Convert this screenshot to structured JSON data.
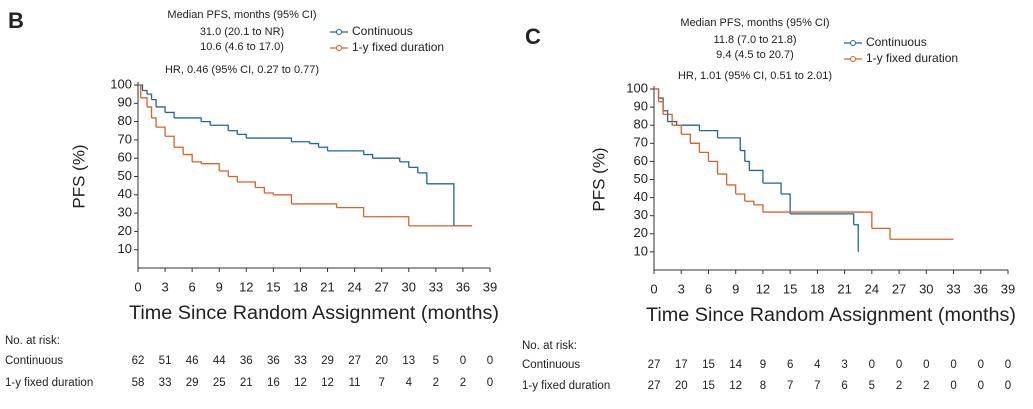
{
  "chart_data": [
    {
      "type": "step",
      "panel": "B",
      "annotations": [
        "Median PFS, months (95% CI)",
        "31.0 (20.1 to NR)",
        "10.6 (4.6 to 17.0)",
        "HR, 0.46 (95% CI, 0.27 to 0.77)"
      ],
      "x_label": "Time Since Random Assignment (months)",
      "y_label": "PFS (%)",
      "xlim": [
        0,
        39
      ],
      "xticks": [
        0,
        3,
        6,
        9,
        12,
        15,
        18,
        21,
        24,
        27,
        30,
        33,
        36,
        39
      ],
      "ylim": [
        0,
        100
      ],
      "yticks": [
        10,
        20,
        30,
        40,
        50,
        60,
        70,
        80,
        90,
        100
      ],
      "series": [
        {
          "name": "Continuous",
          "color": "#21659e",
          "x": [
            0,
            0.5,
            1,
            1.5,
            2,
            3,
            4,
            7,
            8,
            10,
            11,
            12,
            17,
            19,
            20,
            21,
            25,
            26,
            29,
            30,
            31,
            32,
            35,
            37
          ],
          "values": [
            100,
            97,
            95,
            92,
            88,
            85,
            82,
            80,
            78,
            75,
            73,
            71,
            69,
            68,
            66,
            64,
            62,
            60,
            58,
            55,
            52,
            46,
            23,
            23
          ]
        },
        {
          "name": "1-y fixed duration",
          "color": "#d9622b",
          "x": [
            0,
            0.3,
            1,
            1.5,
            2,
            3,
            4,
            5,
            6,
            7,
            9,
            10,
            11,
            13,
            14,
            15,
            17,
            22,
            25,
            30,
            37
          ],
          "values": [
            100,
            93,
            88,
            82,
            77,
            72,
            66,
            62,
            58,
            57,
            53,
            50,
            47,
            44,
            41,
            40,
            35,
            33,
            28,
            23,
            23
          ]
        }
      ],
      "risk_table": {
        "title": "No. at risk:",
        "rows": [
          {
            "name": "Continuous",
            "values": [
              62,
              51,
              46,
              44,
              36,
              36,
              33,
              29,
              27,
              20,
              13,
              5,
              0,
              0
            ]
          },
          {
            "name": "1-y fixed duration",
            "values": [
              58,
              33,
              29,
              25,
              21,
              16,
              12,
              12,
              11,
              7,
              4,
              2,
              2,
              0
            ]
          }
        ]
      }
    },
    {
      "type": "step",
      "panel": "C",
      "annotations": [
        "Median PFS, months (95% CI)",
        "11.8 (7.0 to 21.8)",
        "9.4 (4.5 to 20.7)",
        "HR, 1.01 (95% CI, 0.51 to 2.01)"
      ],
      "x_label": "Time Since Random Assignment (months)",
      "y_label": "PFS (%)",
      "xlim": [
        0,
        39
      ],
      "xticks": [
        0,
        3,
        6,
        9,
        12,
        15,
        18,
        21,
        24,
        27,
        30,
        33,
        36,
        39
      ],
      "ylim": [
        0,
        100
      ],
      "yticks": [
        10,
        20,
        30,
        40,
        50,
        60,
        70,
        80,
        90,
        100
      ],
      "series": [
        {
          "name": "Continuous",
          "color": "#21659e",
          "x": [
            0,
            0.5,
            1,
            1.5,
            2.5,
            5,
            7,
            9.5,
            10,
            10.5,
            12,
            14,
            15,
            20,
            22,
            22.5
          ],
          "values": [
            100,
            95,
            88,
            82,
            80,
            77,
            73,
            66,
            60,
            55,
            48,
            42,
            31,
            31,
            25,
            10
          ]
        },
        {
          "name": "1-y fixed duration",
          "color": "#d9622b",
          "x": [
            0,
            0.5,
            1,
            2,
            3,
            4,
            5,
            6,
            7,
            8,
            9,
            10,
            11,
            12,
            24,
            26,
            33
          ],
          "values": [
            100,
            93,
            86,
            80,
            75,
            70,
            65,
            60,
            53,
            47,
            42,
            38,
            36,
            32,
            23,
            17,
            17
          ]
        }
      ],
      "risk_table": {
        "title": "No. at risk:",
        "rows": [
          {
            "name": "Continuous",
            "values": [
              27,
              17,
              15,
              14,
              9,
              6,
              4,
              3,
              0,
              0,
              0,
              0,
              0,
              0
            ]
          },
          {
            "name": "1-y fixed duration",
            "values": [
              27,
              20,
              15,
              12,
              8,
              7,
              7,
              6,
              5,
              2,
              2,
              0,
              0,
              0
            ]
          }
        ]
      }
    }
  ]
}
